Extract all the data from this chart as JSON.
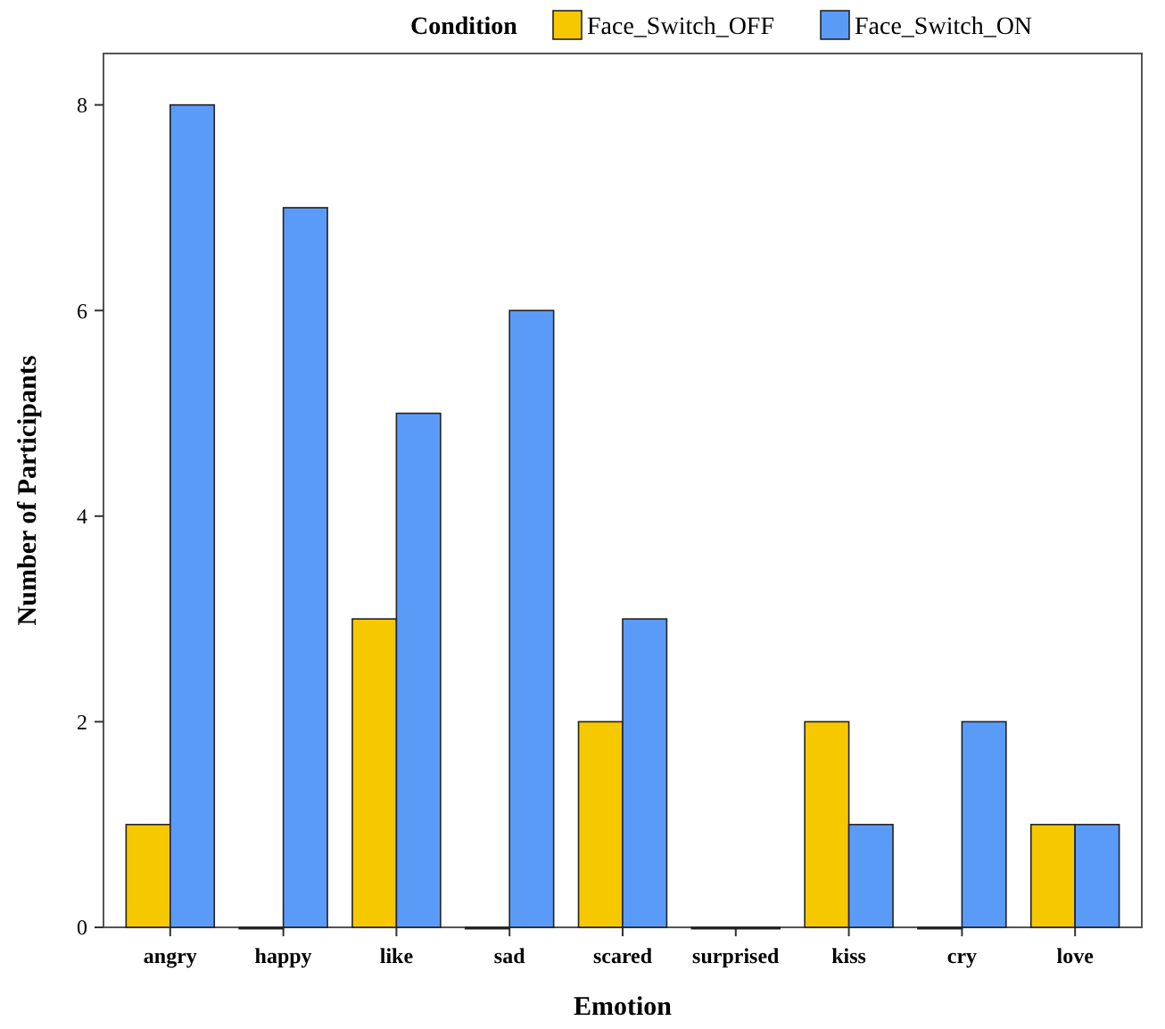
{
  "chart_data": {
    "type": "bar",
    "xlabel": "Emotion",
    "ylabel": "Number of Participants",
    "legend_title": "Condition",
    "legend": "top",
    "categories": [
      "angry",
      "happy",
      "like",
      "sad",
      "scared",
      "surprised",
      "kiss",
      "cry",
      "love"
    ],
    "series": [
      {
        "name": "Face_Switch_OFF",
        "color": "#f5c800",
        "values": [
          1,
          0,
          3,
          0,
          2,
          0,
          2,
          0,
          1
        ]
      },
      {
        "name": "Face_Switch_ON",
        "color": "#5b9bf8",
        "values": [
          8,
          7,
          5,
          6,
          3,
          0,
          1,
          2,
          1
        ]
      }
    ],
    "ylim": [
      0,
      8.5
    ],
    "yticks": [
      0,
      2,
      4,
      6,
      8
    ]
  }
}
